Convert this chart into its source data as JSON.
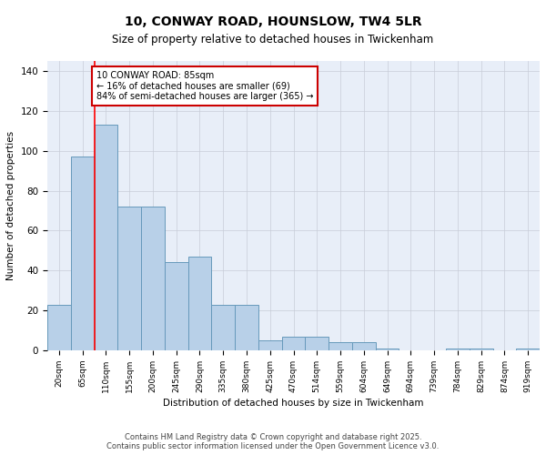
{
  "title1": "10, CONWAY ROAD, HOUNSLOW, TW4 5LR",
  "title2": "Size of property relative to detached houses in Twickenham",
  "xlabel": "Distribution of detached houses by size in Twickenham",
  "ylabel": "Number of detached properties",
  "categories": [
    "20sqm",
    "65sqm",
    "110sqm",
    "155sqm",
    "200sqm",
    "245sqm",
    "290sqm",
    "335sqm",
    "380sqm",
    "425sqm",
    "470sqm",
    "514sqm",
    "559sqm",
    "604sqm",
    "649sqm",
    "694sqm",
    "739sqm",
    "784sqm",
    "829sqm",
    "874sqm",
    "919sqm"
  ],
  "values": [
    23,
    97,
    113,
    72,
    72,
    44,
    47,
    23,
    23,
    5,
    7,
    7,
    4,
    4,
    1,
    0,
    0,
    1,
    1,
    0,
    1
  ],
  "bar_color": "#b8d0e8",
  "bar_edge_color": "#6699bb",
  "bg_color": "#e8eef8",
  "grid_color": "#c8ccd8",
  "red_line_x": 1.5,
  "annotation_text": "10 CONWAY ROAD: 85sqm\n← 16% of detached houses are smaller (69)\n84% of semi-detached houses are larger (365) →",
  "annotation_box_color": "#ffffff",
  "annotation_border_color": "#cc0000",
  "footer1": "Contains HM Land Registry data © Crown copyright and database right 2025.",
  "footer2": "Contains public sector information licensed under the Open Government Licence v3.0.",
  "ylim": [
    0,
    145
  ],
  "yticks": [
    0,
    20,
    40,
    60,
    80,
    100,
    120,
    140
  ]
}
